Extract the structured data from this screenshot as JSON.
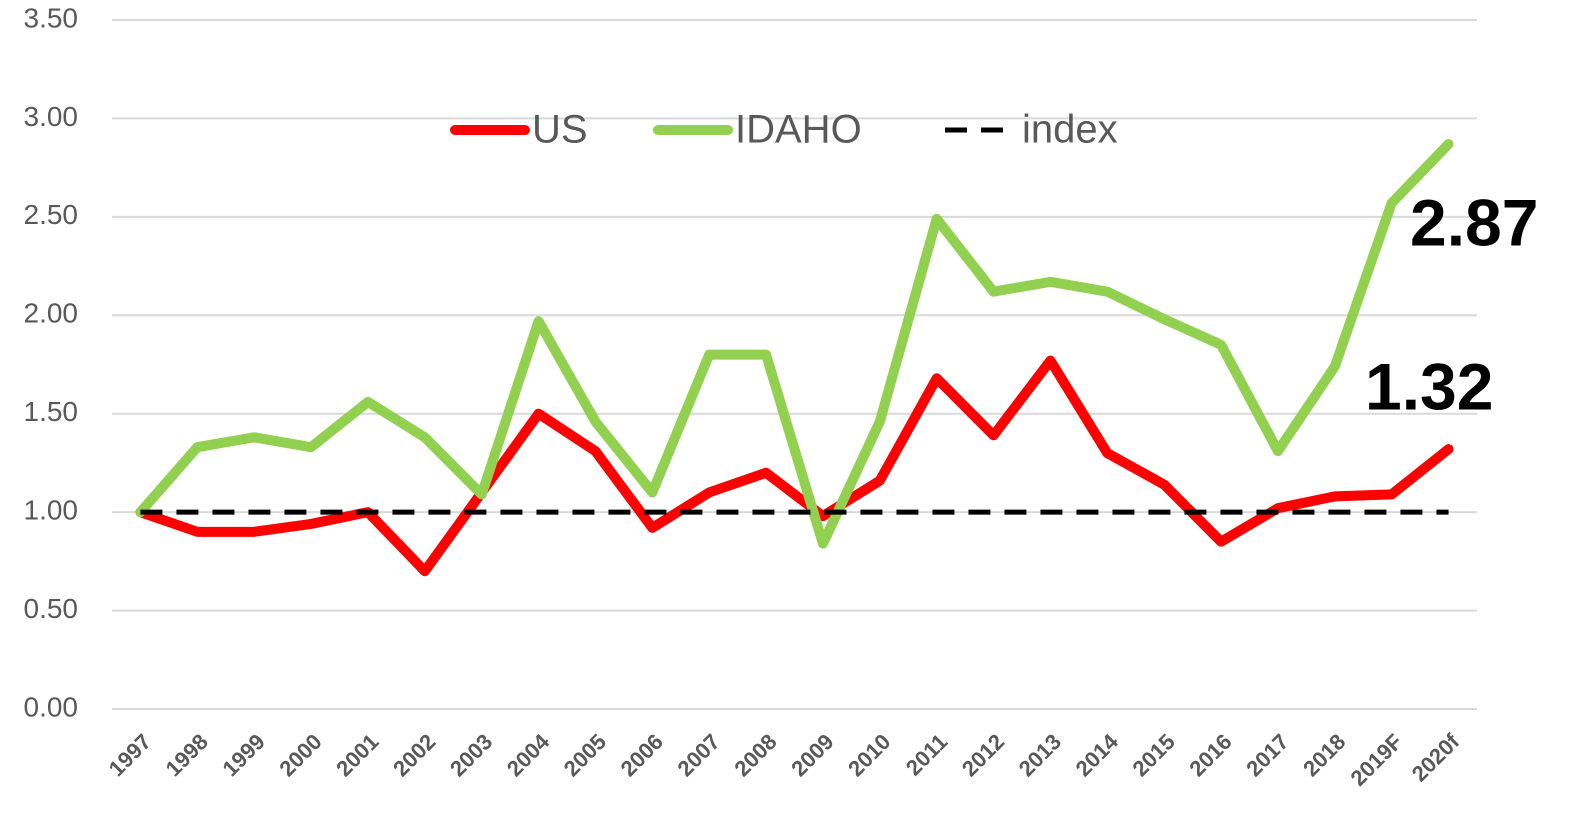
{
  "chart_data": {
    "type": "line",
    "categories": [
      "1997",
      "1998",
      "1999",
      "2000",
      "2001",
      "2002",
      "2003",
      "2004",
      "2005",
      "2006",
      "2007",
      "2008",
      "2009",
      "2010",
      "2011",
      "2012",
      "2013",
      "2014",
      "2015",
      "2016",
      "2017",
      "2018",
      "2019F",
      "2020f"
    ],
    "series": [
      {
        "name": "US",
        "color": "#ff0000",
        "dash": false,
        "values": [
          1.0,
          0.9,
          0.9,
          0.94,
          1.0,
          0.7,
          1.1,
          1.5,
          1.31,
          0.92,
          1.1,
          1.2,
          0.98,
          1.16,
          1.68,
          1.39,
          1.77,
          1.3,
          1.14,
          0.85,
          1.02,
          1.08,
          1.09,
          1.32
        ]
      },
      {
        "name": "IDAHO",
        "color": "#92d050",
        "dash": false,
        "values": [
          1.0,
          1.33,
          1.38,
          1.33,
          1.56,
          1.38,
          1.09,
          1.97,
          1.46,
          1.1,
          1.8,
          1.8,
          0.84,
          1.46,
          2.49,
          2.12,
          2.17,
          2.12,
          1.98,
          1.85,
          1.31,
          1.74,
          2.57,
          2.87
        ]
      },
      {
        "name": "index",
        "color": "#000000",
        "dash": true,
        "values": [
          1,
          1,
          1,
          1,
          1,
          1,
          1,
          1,
          1,
          1,
          1,
          1,
          1,
          1,
          1,
          1,
          1,
          1,
          1,
          1,
          1,
          1,
          1,
          1
        ]
      }
    ],
    "annotations": [
      "2.87",
      "1.32"
    ],
    "ylim": [
      0,
      3.5
    ],
    "yticks": [
      {
        "value": 0,
        "label": "0.00"
      },
      {
        "value": 0.5,
        "label": "0.50"
      },
      {
        "value": 1,
        "label": "1.00"
      },
      {
        "value": 1.5,
        "label": "1.50"
      },
      {
        "value": 2,
        "label": "2.00"
      },
      {
        "value": 2.5,
        "label": "2.50"
      },
      {
        "value": 3,
        "label": "3.00"
      },
      {
        "value": 3.5,
        "label": "3.50"
      }
    ],
    "grid": true,
    "legend": "top"
  }
}
